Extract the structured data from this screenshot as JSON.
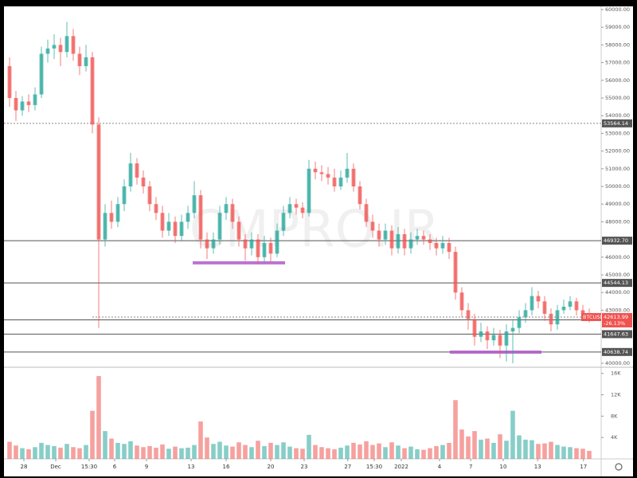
{
  "chart_data": {
    "type": "candlestick",
    "watermark": "CMPRO.IR",
    "up_color": "#26a69a",
    "down_color": "#ef5350",
    "xlim": [
      0,
      92
    ],
    "xticks": [
      {
        "value": 2.75,
        "label": "28"
      },
      {
        "value": 7.75,
        "label": "Dec"
      },
      {
        "value": 13,
        "label": "15:30"
      },
      {
        "value": 17,
        "label": "6"
      },
      {
        "value": 22,
        "label": "9"
      },
      {
        "value": 29,
        "label": "13"
      },
      {
        "value": 34.5,
        "label": "16"
      },
      {
        "value": 41.5,
        "label": "20"
      },
      {
        "value": 46.75,
        "label": "23"
      },
      {
        "value": 53.6,
        "label": "27"
      },
      {
        "value": 57.75,
        "label": "15:30"
      },
      {
        "value": 62,
        "label": "2022"
      },
      {
        "value": 68,
        "label": "4"
      },
      {
        "value": 72.9,
        "label": "7"
      },
      {
        "value": 78,
        "label": "10"
      },
      {
        "value": 83.4,
        "label": "13"
      },
      {
        "value": 90.6,
        "label": "17"
      }
    ],
    "ylim": [
      40000,
      60000
    ],
    "yticks": [
      {
        "value": 60000,
        "label": "60000.00"
      },
      {
        "value": 59000,
        "label": "59000.00"
      },
      {
        "value": 58000,
        "label": "58000.00"
      },
      {
        "value": 57000,
        "label": "57000.00"
      },
      {
        "value": 56000,
        "label": "56000.00"
      },
      {
        "value": 55000,
        "label": "55000.00"
      },
      {
        "value": 54000,
        "label": "54000.00"
      },
      {
        "value": 53000,
        "label": "53000.00"
      },
      {
        "value": 52000,
        "label": "52000.00"
      },
      {
        "value": 51000,
        "label": "51000.00"
      },
      {
        "value": 50000,
        "label": "50000.00"
      },
      {
        "value": 49000,
        "label": "49000.00"
      },
      {
        "value": 48000,
        "label": "48000.00"
      },
      {
        "value": 46000,
        "label": "46000.00"
      },
      {
        "value": 45000,
        "label": "45000.00"
      },
      {
        "value": 44000,
        "label": "44000.00"
      },
      {
        "value": 43000,
        "label": "43000.00"
      },
      {
        "value": 40000,
        "label": "40000.00"
      }
    ],
    "levels": [
      {
        "value": 53564.14,
        "style": "dashed"
      },
      {
        "value": 46932.7,
        "label": "46932.70",
        "style": "solid"
      },
      {
        "value": 44544.13,
        "style": "solid"
      },
      {
        "value": 42452.17,
        "style": "solid"
      },
      {
        "value": 41647.63,
        "style": "solid"
      },
      {
        "value": 40638.74,
        "style": "solid"
      }
    ],
    "zones": [
      {
        "value": 45680,
        "from": 29.25,
        "to": 43.75,
        "color": "#b05cc8"
      },
      {
        "value": 40630,
        "from": 69.6,
        "to": 84,
        "color": "#b05cc8"
      }
    ],
    "last": {
      "symbol": "BTCUSD",
      "value": 42613.99,
      "change": {
        "value": -26.13,
        "label": "-26.13%"
      }
    },
    "candles": [
      [
        56800,
        57300,
        54500,
        55000
      ],
      [
        55000,
        55400,
        53700,
        54300
      ],
      [
        54300,
        55100,
        54000,
        54800
      ],
      [
        54800,
        55200,
        54200,
        54600
      ],
      [
        54600,
        55600,
        54300,
        55200
      ],
      [
        55200,
        57900,
        55000,
        57500
      ],
      [
        57500,
        58300,
        57000,
        57800
      ],
      [
        57800,
        58600,
        57200,
        58000
      ],
      [
        58000,
        58400,
        56800,
        57600
      ],
      [
        57600,
        59300,
        57300,
        58500
      ],
      [
        58500,
        58900,
        57100,
        57500
      ],
      [
        57500,
        57900,
        56300,
        56800
      ],
      [
        56800,
        58000,
        56500,
        57300
      ],
      [
        57300,
        57600,
        53000,
        53500
      ],
      [
        53500,
        53900,
        42000,
        47000
      ],
      [
        47000,
        49000,
        46600,
        48500
      ],
      [
        48500,
        49200,
        47600,
        48000
      ],
      [
        48000,
        49400,
        47700,
        49000
      ],
      [
        49000,
        50400,
        48600,
        50000
      ],
      [
        50000,
        51900,
        49700,
        51300
      ],
      [
        51300,
        51600,
        50100,
        50500
      ],
      [
        50500,
        50900,
        49600,
        50000
      ],
      [
        50000,
        50300,
        48600,
        49000
      ],
      [
        49000,
        49400,
        48100,
        48500
      ],
      [
        48500,
        48900,
        47100,
        47500
      ],
      [
        47500,
        48500,
        47200,
        48000
      ],
      [
        48000,
        48300,
        46800,
        47200
      ],
      [
        47200,
        48400,
        46900,
        48000
      ],
      [
        48000,
        48900,
        47600,
        48500
      ],
      [
        48500,
        50300,
        48200,
        49500
      ],
      [
        49500,
        49800,
        46500,
        47000
      ],
      [
        47000,
        47400,
        45900,
        46500
      ],
      [
        46500,
        47400,
        46200,
        47000
      ],
      [
        47000,
        48900,
        46700,
        48500
      ],
      [
        48500,
        49400,
        48100,
        49000
      ],
      [
        49000,
        49300,
        47600,
        48000
      ],
      [
        48000,
        48300,
        46600,
        47000
      ],
      [
        47000,
        47300,
        45800,
        46500
      ],
      [
        46500,
        47400,
        46100,
        47000
      ],
      [
        47000,
        47300,
        45600,
        46000
      ],
      [
        46000,
        47200,
        45700,
        46800
      ],
      [
        46800,
        47100,
        45700,
        46200
      ],
      [
        46200,
        47900,
        46000,
        47500
      ],
      [
        47500,
        48900,
        47200,
        48500
      ],
      [
        48500,
        49400,
        48200,
        49000
      ],
      [
        49000,
        49300,
        48400,
        48800
      ],
      [
        48800,
        49100,
        48200,
        48500
      ],
      [
        48500,
        51500,
        48300,
        51000
      ],
      [
        51000,
        51400,
        50400,
        50800
      ],
      [
        50800,
        51200,
        50300,
        50700
      ],
      [
        50700,
        51100,
        50100,
        50500
      ],
      [
        50500,
        51000,
        49700,
        50000
      ],
      [
        50000,
        50900,
        49800,
        50500
      ],
      [
        50500,
        51900,
        50200,
        51000
      ],
      [
        51000,
        51300,
        49700,
        50000
      ],
      [
        50000,
        50300,
        48700,
        49000
      ],
      [
        49000,
        49300,
        47700,
        48000
      ],
      [
        48000,
        48400,
        47100,
        47500
      ],
      [
        47500,
        47900,
        46600,
        47000
      ],
      [
        47000,
        47900,
        46700,
        47500
      ],
      [
        47500,
        47800,
        46100,
        46500
      ],
      [
        46500,
        47700,
        46200,
        47300
      ],
      [
        47300,
        47600,
        46100,
        46500
      ],
      [
        46500,
        47400,
        46200,
        47000
      ],
      [
        47000,
        47600,
        46700,
        47200
      ],
      [
        47200,
        47500,
        46700,
        47000
      ],
      [
        47000,
        47300,
        46400,
        46800
      ],
      [
        46800,
        47100,
        46100,
        46500
      ],
      [
        46500,
        47200,
        46200,
        46800
      ],
      [
        46800,
        47100,
        45900,
        46300
      ],
      [
        46300,
        46600,
        43600,
        44000
      ],
      [
        44000,
        44300,
        42600,
        43000
      ],
      [
        43000,
        43400,
        41900,
        42500
      ],
      [
        42500,
        42800,
        41000,
        41500
      ],
      [
        41500,
        42300,
        41200,
        41800
      ],
      [
        41800,
        42100,
        40800,
        41300
      ],
      [
        41300,
        42000,
        41000,
        41600
      ],
      [
        41600,
        41900,
        40300,
        41000
      ],
      [
        41000,
        42200,
        40100,
        41800
      ],
      [
        41800,
        42500,
        40000,
        42000
      ],
      [
        42000,
        43000,
        41700,
        42600
      ],
      [
        42600,
        43400,
        42300,
        43000
      ],
      [
        43000,
        44300,
        42700,
        43800
      ],
      [
        43800,
        44100,
        43100,
        43500
      ],
      [
        43500,
        43800,
        42400,
        42800
      ],
      [
        42800,
        43100,
        41800,
        42200
      ],
      [
        42200,
        43300,
        41900,
        43000
      ],
      [
        43000,
        43600,
        42800,
        43200
      ],
      [
        43200,
        43800,
        43000,
        43500
      ],
      [
        43500,
        43700,
        42700,
        43000
      ],
      [
        43000,
        43300,
        42500,
        42800
      ],
      [
        42800,
        43100,
        42300,
        42614
      ]
    ],
    "volume": [
      3200,
      2500,
      2000,
      1800,
      2200,
      3000,
      2600,
      2400,
      2100,
      2800,
      2200,
      2000,
      2600,
      9000,
      15500,
      5200,
      3800,
      3000,
      2800,
      3300,
      2500,
      2200,
      2400,
      2100,
      2700,
      1900,
      2300,
      2000,
      2100,
      2600,
      7000,
      4000,
      2800,
      3200,
      2500,
      2300,
      3100,
      2600,
      2200,
      3400,
      2400,
      3000,
      2600,
      3100,
      2300,
      2000,
      1900,
      4500,
      2600,
      2200,
      2000,
      1800,
      2100,
      2500,
      3000,
      2700,
      3300,
      2600,
      2900,
      2200,
      3100,
      2500,
      2000,
      2300,
      1800,
      1700,
      2000,
      2400,
      2600,
      3000,
      11000,
      5500,
      4200,
      5200,
      3600,
      3800,
      3000,
      4600,
      3400,
      9000,
      4400,
      3600,
      3500,
      2800,
      2900,
      3200,
      2600,
      2300,
      2200,
      2000,
      1900,
      1500
    ],
    "vlim": [
      0,
      17000
    ],
    "vticks": [
      {
        "value": 16000,
        "label": "16K"
      },
      {
        "value": 12000,
        "label": "12K"
      },
      {
        "value": 8000,
        "label": "8K"
      },
      {
        "value": 4000,
        "label": "4K"
      }
    ]
  }
}
